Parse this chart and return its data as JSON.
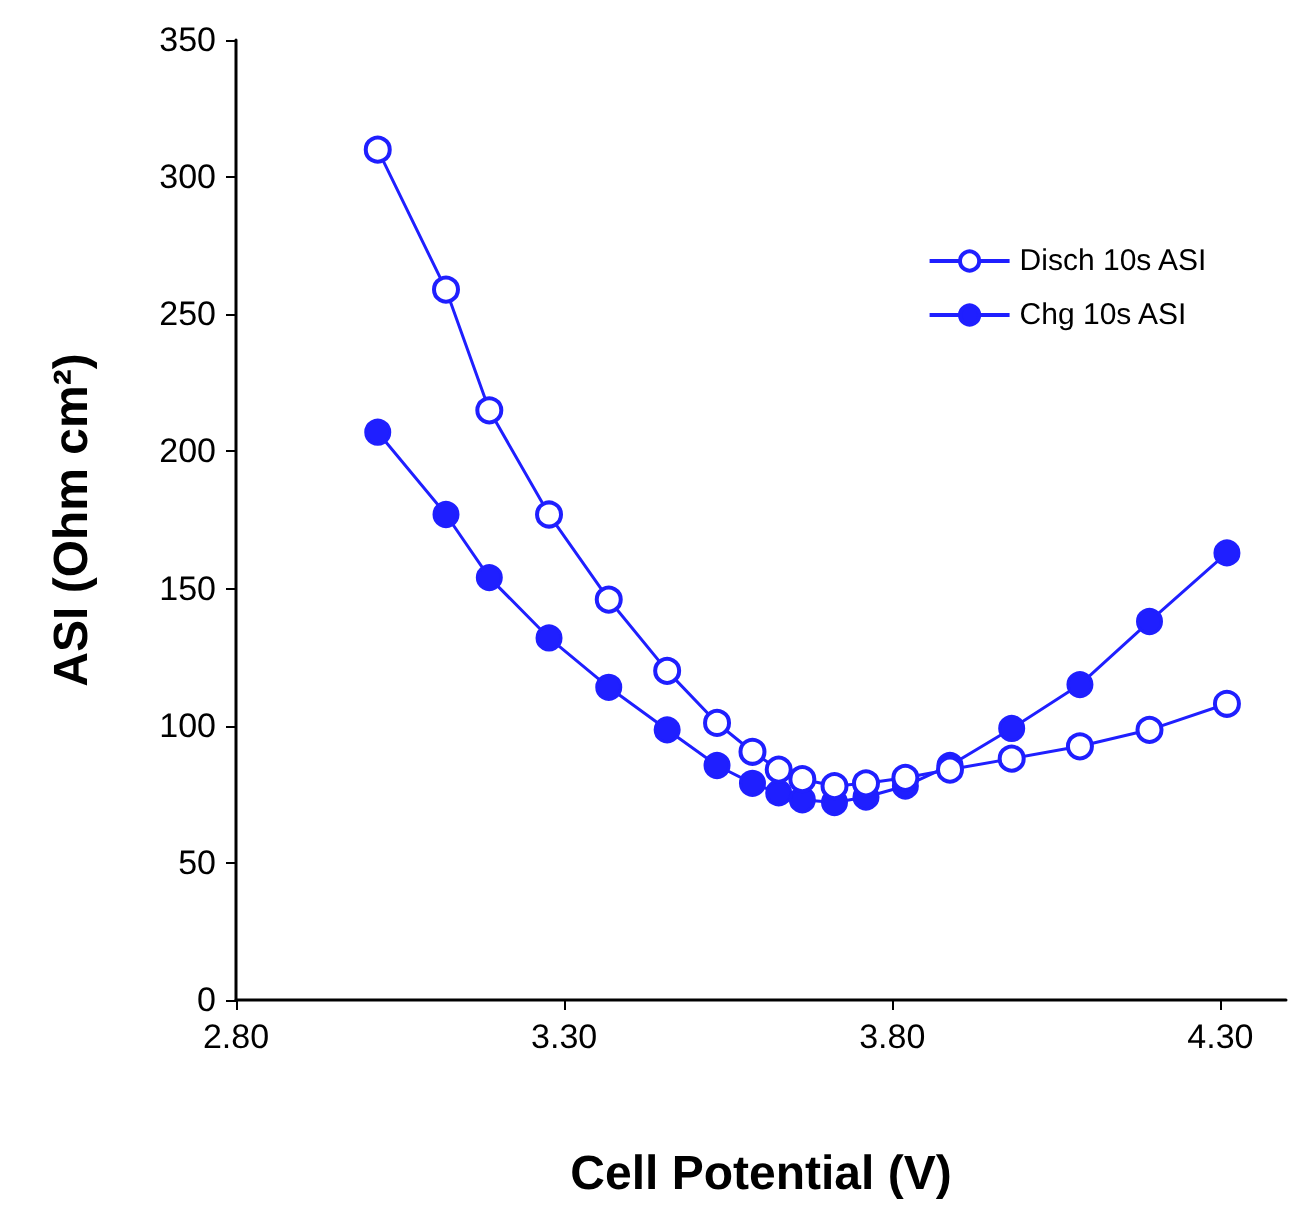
{
  "chart_data": {
    "type": "line",
    "xlabel": "Cell Potential (V)",
    "ylabel": "ASI (Ohm cm²)",
    "xlim": [
      2.8,
      4.4
    ],
    "xticks": [
      {
        "value": 2.8,
        "label": "2.80"
      },
      {
        "value": 3.3,
        "label": "3.30"
      },
      {
        "value": 3.8,
        "label": "3.80"
      },
      {
        "value": 4.3,
        "label": "4.30"
      }
    ],
    "ylim": [
      0,
      350
    ],
    "yticks": [
      0,
      50,
      100,
      150,
      200,
      250,
      300,
      350
    ],
    "x": [
      3.016,
      3.12,
      3.186,
      3.277,
      3.368,
      3.457,
      3.533,
      3.587,
      3.627,
      3.663,
      3.712,
      3.76,
      3.82,
      3.888,
      3.982,
      4.086,
      4.192,
      4.31
    ],
    "series": [
      {
        "name": "Disch 10s ASI",
        "color": "#1f1fff",
        "values": [
          310,
          259,
          215,
          177,
          146,
          120,
          101,
          90.5,
          84,
          80.5,
          78,
          79,
          81,
          84,
          88,
          92.5,
          98.5,
          108
        ]
      },
      {
        "name": "Chg 10s ASI",
        "color": "#1f1fff",
        "values": [
          207,
          177,
          154,
          132,
          114,
          98.5,
          85.5,
          79,
          75.5,
          73,
          72,
          74,
          78,
          85.5,
          99,
          115,
          138,
          163
        ]
      }
    ],
    "marker": "circle",
    "line_style": "solid",
    "grid": false,
    "legend": "top right"
  }
}
